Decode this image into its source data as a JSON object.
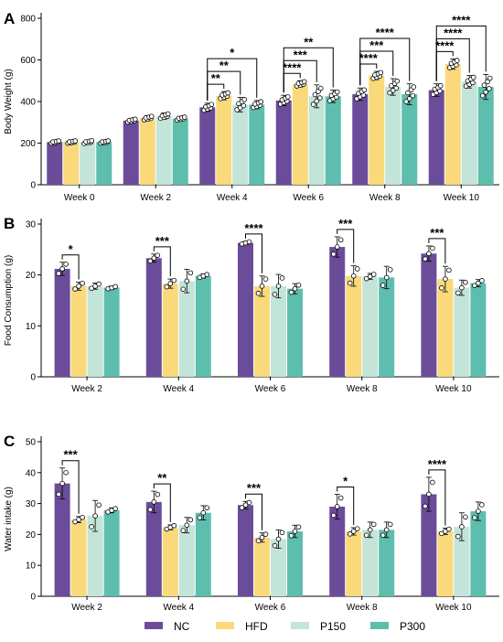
{
  "legend": {
    "placement": "bottom",
    "items": [
      {
        "label": "NC",
        "color": "#6B4C9A"
      },
      {
        "label": "HFD",
        "color": "#F9D97A"
      },
      {
        "label": "P150",
        "color": "#C3E4D9"
      },
      {
        "label": "P300",
        "color": "#5DBEAE"
      }
    ]
  },
  "chart_data": [
    {
      "panel_letter": "A",
      "type": "bar",
      "ylabel": "Body Weight (g)",
      "ylim": [
        0,
        800
      ],
      "yticks": [
        0,
        200,
        400,
        600,
        800
      ],
      "categories": [
        "Week 0",
        "Week 2",
        "Week 4",
        "Week 6",
        "Week 8",
        "Week 10"
      ],
      "series": [
        {
          "name": "NC",
          "values": [
            205,
            308,
            372,
            405,
            435,
            455
          ],
          "errors": [
            8,
            10,
            20,
            25,
            30,
            30
          ]
        },
        {
          "name": "HFD",
          "values": [
            205,
            320,
            428,
            485,
            525,
            580
          ],
          "errors": [
            8,
            12,
            20,
            15,
            20,
            25
          ]
        },
        {
          "name": "P150",
          "values": [
            205,
            330,
            385,
            425,
            470,
            495
          ],
          "errors": [
            10,
            15,
            35,
            55,
            40,
            30
          ]
        },
        {
          "name": "P300",
          "values": [
            205,
            318,
            385,
            425,
            435,
            470
          ],
          "errors": [
            8,
            10,
            20,
            30,
            50,
            60
          ]
        }
      ],
      "significance": [
        {
          "category": "Week 4",
          "to_series": "HFD",
          "label": "**"
        },
        {
          "category": "Week 4",
          "to_series": "P150",
          "label": "**"
        },
        {
          "category": "Week 4",
          "to_series": "P300",
          "label": "*"
        },
        {
          "category": "Week 6",
          "to_series": "HFD",
          "label": "****"
        },
        {
          "category": "Week 6",
          "to_series": "P150",
          "label": "***"
        },
        {
          "category": "Week 6",
          "to_series": "P300",
          "label": "**"
        },
        {
          "category": "Week 8",
          "to_series": "HFD",
          "label": "****"
        },
        {
          "category": "Week 8",
          "to_series": "P150",
          "label": "***"
        },
        {
          "category": "Week 8",
          "to_series": "P300",
          "label": "****"
        },
        {
          "category": "Week 10",
          "to_series": "HFD",
          "label": "****"
        },
        {
          "category": "Week 10",
          "to_series": "P150",
          "label": "****"
        },
        {
          "category": "Week 10",
          "to_series": "P300",
          "label": "****"
        }
      ]
    },
    {
      "panel_letter": "B",
      "type": "bar",
      "ylabel": "Food Consumption (g)",
      "ylim": [
        0,
        30
      ],
      "yticks": [
        0,
        10,
        20,
        30
      ],
      "categories": [
        "Week 2",
        "Week 4",
        "Week 6",
        "Week 8",
        "Week 10"
      ],
      "series": [
        {
          "name": "NC",
          "values": [
            21.2,
            23.3,
            26.3,
            25.5,
            24.2
          ],
          "errors": [
            1.3,
            0.8,
            0.3,
            2.0,
            1.5
          ]
        },
        {
          "name": "HFD",
          "values": [
            17.8,
            18.3,
            17.8,
            19.8,
            19.2
          ],
          "errors": [
            0.8,
            0.9,
            2.0,
            2.0,
            2.5
          ]
        },
        {
          "name": "P150",
          "values": [
            17.8,
            18.8,
            17.8,
            19.7,
            17.5
          ],
          "errors": [
            0.6,
            2.3,
            2.3,
            0.6,
            1.5
          ]
        },
        {
          "name": "P300",
          "values": [
            17.5,
            19.8,
            17.3,
            19.5,
            18.4
          ],
          "errors": [
            0.3,
            0.4,
            1.0,
            2.2,
            0.7
          ]
        }
      ],
      "significance": [
        {
          "category": "Week 2",
          "to_series": "HFD",
          "label": "*"
        },
        {
          "category": "Week 4",
          "to_series": "HFD",
          "label": "***"
        },
        {
          "category": "Week 6",
          "to_series": "HFD",
          "label": "****"
        },
        {
          "category": "Week 8",
          "to_series": "HFD",
          "label": "***"
        },
        {
          "category": "Week 10",
          "to_series": "HFD",
          "label": "***"
        }
      ]
    },
    {
      "panel_letter": "C",
      "type": "bar",
      "ylabel": "Water intake (g)",
      "ylim": [
        0,
        50
      ],
      "yticks": [
        0,
        10,
        20,
        30,
        40,
        50
      ],
      "categories": [
        "Week 2",
        "Week 4",
        "Week 6",
        "Week 8",
        "Week 10"
      ],
      "series": [
        {
          "name": "NC",
          "values": [
            36.5,
            30.5,
            29.5,
            29.0,
            33.0
          ],
          "errors": [
            5.0,
            3.5,
            1.2,
            4.0,
            5.5
          ]
        },
        {
          "name": "HFD",
          "values": [
            24.8,
            22.3,
            19.0,
            21.0,
            21.0
          ],
          "errors": [
            1.0,
            0.8,
            1.5,
            1.2,
            1.0
          ]
        },
        {
          "name": "P150",
          "values": [
            26.0,
            23.0,
            18.5,
            21.5,
            22.5
          ],
          "errors": [
            5.0,
            2.5,
            3.0,
            2.5,
            4.5
          ]
        },
        {
          "name": "P300",
          "values": [
            27.8,
            27.0,
            21.0,
            21.5,
            27.5
          ],
          "errors": [
            0.8,
            2.3,
            2.0,
            2.5,
            3.0
          ]
        }
      ],
      "significance": [
        {
          "category": "Week 2",
          "to_series": "HFD",
          "label": "***"
        },
        {
          "category": "Week 4",
          "to_series": "HFD",
          "label": "**"
        },
        {
          "category": "Week 6",
          "to_series": "HFD",
          "label": "***"
        },
        {
          "category": "Week 8",
          "to_series": "HFD",
          "label": "*"
        },
        {
          "category": "Week 10",
          "to_series": "HFD",
          "label": "****"
        }
      ]
    }
  ]
}
